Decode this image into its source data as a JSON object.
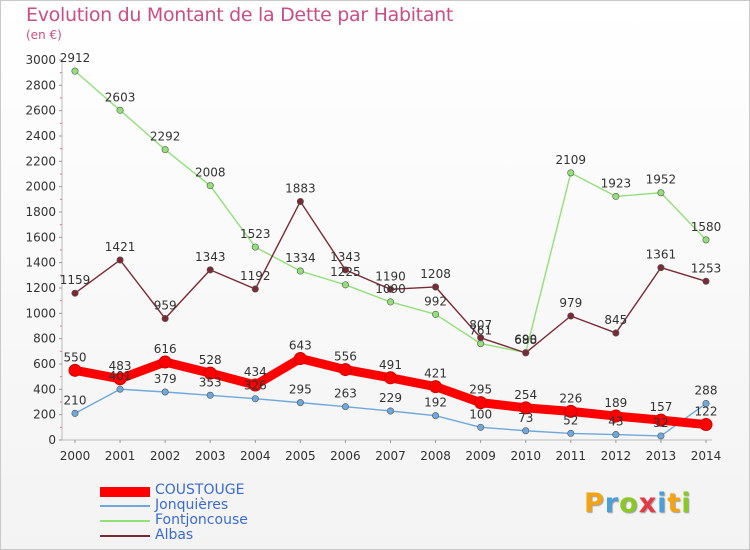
{
  "chart_data": {
    "type": "line",
    "title": "Evolution du Montant de la Dette par Habitant",
    "subtitle": "(en €)",
    "x": [
      "2000",
      "2001",
      "2002",
      "2003",
      "2004",
      "2005",
      "2006",
      "2007",
      "2008",
      "2009",
      "2010",
      "2011",
      "2012",
      "2013",
      "2014"
    ],
    "ylim": [
      0,
      3000
    ],
    "yticks": [
      0,
      200,
      400,
      600,
      800,
      1000,
      1200,
      1400,
      1600,
      1800,
      2000,
      2200,
      2400,
      2600,
      2800,
      3000
    ],
    "grid": false,
    "legend_position": "bottom-left",
    "series": [
      {
        "name": "COUSTOUGE",
        "color": "#ff0000",
        "values": [
          550,
          483,
          616,
          528,
          434,
          643,
          556,
          491,
          421,
          295,
          254,
          226,
          189,
          157,
          122
        ],
        "labels": [
          "550",
          "483",
          "616",
          "528",
          "434",
          "643",
          "556",
          "491",
          "421",
          "295",
          "254",
          "226",
          "189",
          "157",
          "122"
        ]
      },
      {
        "name": "Jonquières",
        "color": "#6fa8dc",
        "values": [
          210,
          401,
          379,
          353,
          326,
          295,
          263,
          229,
          192,
          100,
          73,
          52,
          43,
          32,
          288
        ],
        "labels": [
          "210",
          "401",
          "379",
          "353",
          "326",
          "295",
          "263",
          "229",
          "192",
          "100",
          "73",
          "52",
          "43",
          "32",
          "288"
        ]
      },
      {
        "name": "Fontjoncouse",
        "color": "#93e07a",
        "values": [
          2912,
          2603,
          2292,
          2008,
          1523,
          1334,
          1225,
          1090,
          992,
          761,
          690,
          2109,
          1923,
          1952,
          1580
        ],
        "labels": [
          "2912",
          "2603",
          "2292",
          "2008",
          "1523",
          "1334",
          "1225",
          "1090",
          "992",
          "761",
          "690",
          "2109",
          "1923",
          "1952",
          "1580"
        ]
      },
      {
        "name": "Albas",
        "color": "#7a2a35",
        "values": [
          1159,
          1421,
          959,
          1343,
          1192,
          1883,
          1343,
          1190,
          1208,
          807,
          688,
          979,
          845,
          1361,
          1253
        ],
        "labels": [
          "1159",
          "1421",
          "959",
          "1343",
          "1192",
          "1883",
          "1343",
          "1190",
          "1208",
          "807",
          "688",
          "979",
          "845",
          "1361",
          "1253"
        ]
      }
    ]
  },
  "brand": {
    "letters": [
      "P",
      "r",
      "o",
      "x",
      "i",
      "t",
      "i"
    ],
    "colors": [
      "#f2a413",
      "#4a9fd8",
      "#8ac926",
      "#e63946",
      "#4a9fd8",
      "#f2a413",
      "#8ac926"
    ]
  }
}
